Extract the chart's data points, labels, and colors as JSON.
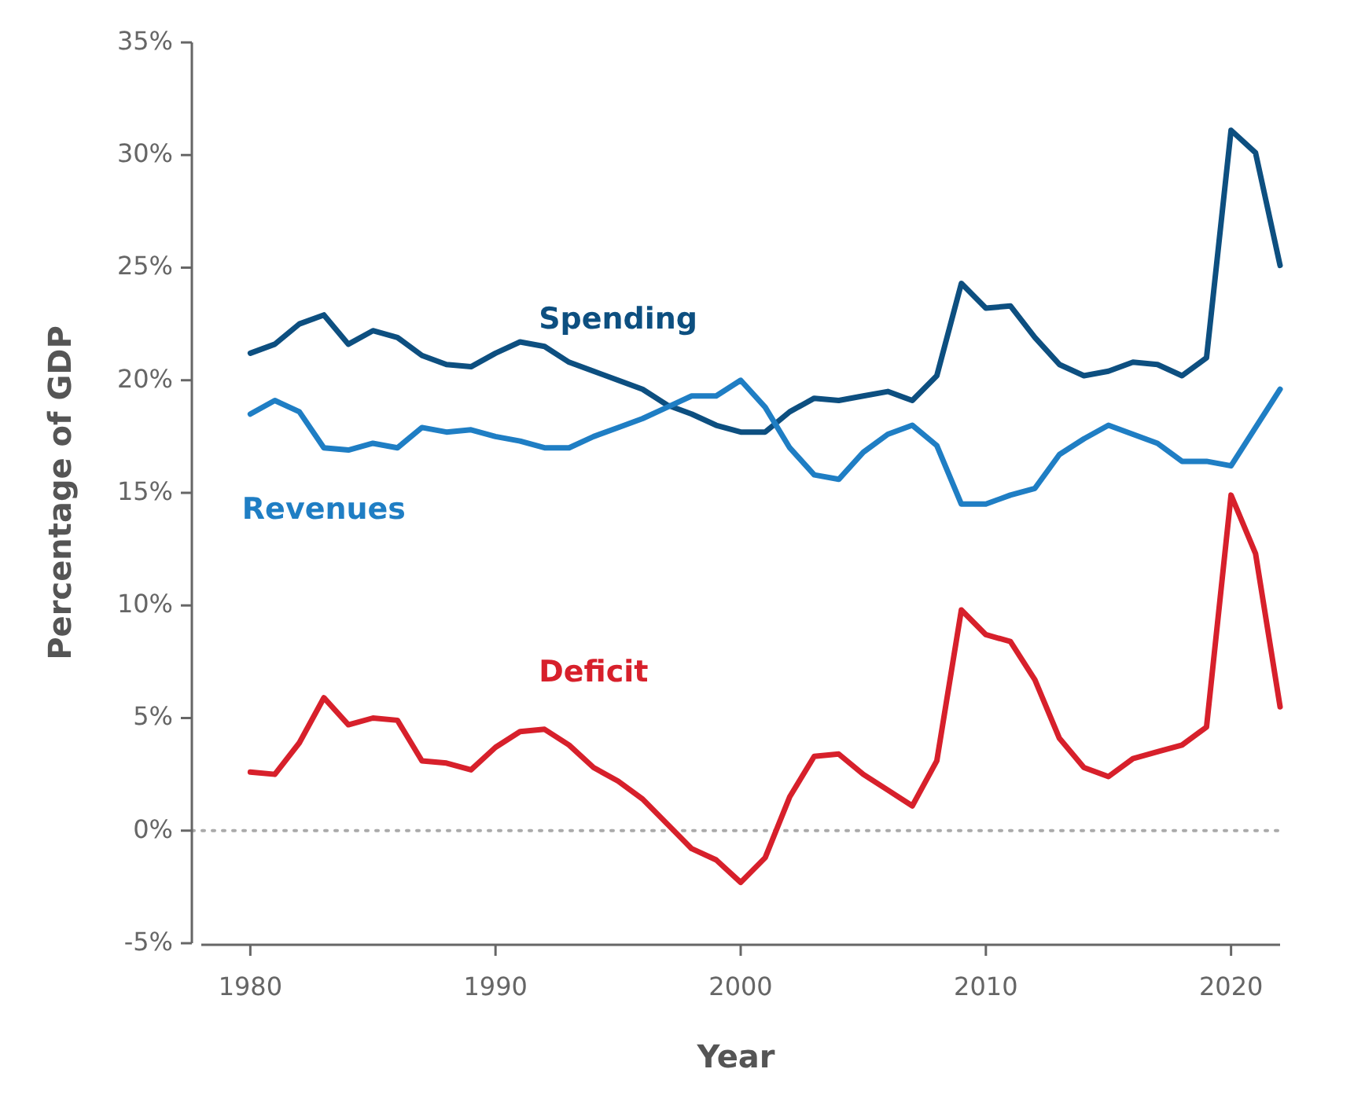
{
  "chart_data": {
    "type": "line",
    "xlabel": "Year",
    "ylabel": "Percentage of GDP",
    "x": [
      1980,
      1981,
      1982,
      1983,
      1984,
      1985,
      1986,
      1987,
      1988,
      1989,
      1990,
      1991,
      1992,
      1993,
      1994,
      1995,
      1996,
      1997,
      1998,
      1999,
      2000,
      2001,
      2002,
      2003,
      2004,
      2005,
      2006,
      2007,
      2008,
      2009,
      2010,
      2011,
      2012,
      2013,
      2014,
      2015,
      2016,
      2017,
      2018,
      2019,
      2020,
      2021,
      2022
    ],
    "series": [
      {
        "name": "Spending",
        "color": "#0d4f80",
        "values": [
          21.2,
          21.6,
          22.5,
          22.9,
          21.6,
          22.2,
          21.9,
          21.1,
          20.7,
          20.6,
          21.2,
          21.7,
          21.5,
          20.8,
          20.4,
          20.0,
          19.6,
          18.9,
          18.5,
          18.0,
          17.7,
          17.7,
          18.6,
          19.2,
          19.1,
          19.3,
          19.5,
          19.1,
          20.2,
          24.3,
          23.2,
          23.3,
          21.9,
          20.7,
          20.2,
          20.4,
          20.8,
          20.7,
          20.2,
          21.0,
          31.1,
          30.1,
          25.1
        ]
      },
      {
        "name": "Revenues",
        "color": "#1f7ec4",
        "values": [
          18.5,
          19.1,
          18.6,
          17.0,
          16.9,
          17.2,
          17.0,
          17.9,
          17.7,
          17.8,
          17.5,
          17.3,
          17.0,
          17.0,
          17.5,
          17.9,
          18.3,
          18.8,
          19.3,
          19.3,
          20.0,
          18.8,
          17.0,
          15.8,
          15.6,
          16.8,
          17.6,
          18.0,
          17.1,
          14.5,
          14.5,
          14.9,
          15.2,
          16.7,
          17.4,
          18.0,
          17.6,
          17.2,
          16.4,
          16.4,
          16.2,
          17.9,
          19.6
        ]
      },
      {
        "name": "Deficit",
        "color": "#d7202b",
        "values": [
          2.6,
          2.5,
          3.9,
          5.9,
          4.7,
          5.0,
          4.9,
          3.1,
          3.0,
          2.7,
          3.7,
          4.4,
          4.5,
          3.8,
          2.8,
          2.2,
          1.4,
          0.3,
          -0.8,
          -1.3,
          -2.3,
          -1.2,
          1.5,
          3.3,
          3.4,
          2.5,
          1.8,
          1.1,
          3.1,
          9.8,
          8.7,
          8.4,
          6.7,
          4.1,
          2.8,
          2.4,
          3.2,
          3.5,
          3.8,
          4.6,
          14.9,
          12.3,
          5.5
        ]
      }
    ],
    "xlim": [
      1978,
      2022
    ],
    "xticks": [
      1980,
      1990,
      2000,
      2010,
      2020
    ],
    "ylim": [
      -5,
      35
    ],
    "yticks": [
      {
        "value": -5,
        "label": "-5%"
      },
      {
        "value": 0,
        "label": "0%"
      },
      {
        "value": 5,
        "label": "5%"
      },
      {
        "value": 10,
        "label": "10%"
      },
      {
        "value": 15,
        "label": "15%"
      },
      {
        "value": 20,
        "label": "20%"
      },
      {
        "value": 25,
        "label": "25%"
      },
      {
        "value": 30,
        "label": "30%"
      },
      {
        "value": 35,
        "label": "35%"
      }
    ],
    "ref_lines": [
      {
        "axis": "y",
        "value": 0,
        "color": "#aaaaaa",
        "line_style": "dotted"
      }
    ],
    "grid": false,
    "legend": false,
    "marker": "none",
    "line_style": "solid"
  }
}
